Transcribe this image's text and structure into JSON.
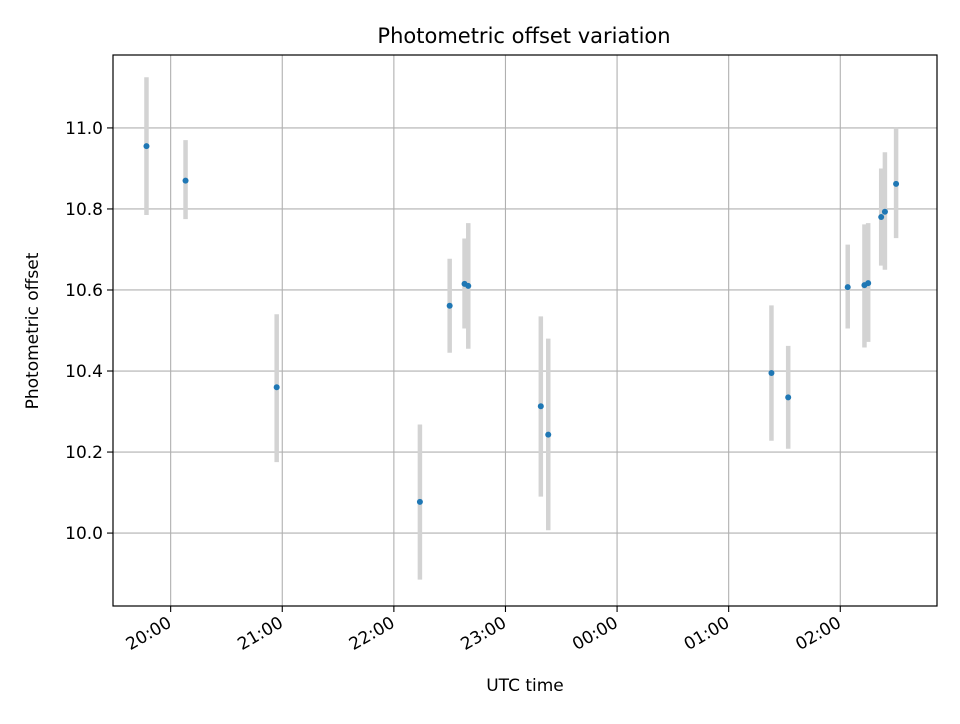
{
  "chart_data": {
    "type": "scatter",
    "title": "Photometric offset variation",
    "xlabel": "UTC time",
    "ylabel": "Photometric offset",
    "x_tick_labels": [
      "20:00",
      "21:00",
      "22:00",
      "23:00",
      "00:00",
      "01:00",
      "02:00"
    ],
    "x_tick_times": [
      "20:00",
      "21:00",
      "22:00",
      "23:00",
      "00:00",
      "01:00",
      "02:00"
    ],
    "y_tick_labels": [
      "10.0",
      "10.2",
      "10.4",
      "10.6",
      "10.8",
      "11.0"
    ],
    "y_ticks": [
      10.0,
      10.2,
      10.4,
      10.6,
      10.8,
      11.0
    ],
    "xlim": [
      "19:29",
      "02:52"
    ],
    "ylim": [
      9.82,
      11.18
    ],
    "grid": true,
    "series": [
      {
        "points": [
          {
            "x": "19:47",
            "y": 10.955,
            "yerr_low": 10.785,
            "yerr_high": 11.125
          },
          {
            "x": "20:08",
            "y": 10.87,
            "yerr_low": 10.775,
            "yerr_high": 10.97
          },
          {
            "x": "20:57",
            "y": 10.36,
            "yerr_low": 10.175,
            "yerr_high": 10.54
          },
          {
            "x": "22:14",
            "y": 10.077,
            "yerr_low": 9.885,
            "yerr_high": 10.268
          },
          {
            "x": "22:30",
            "y": 10.561,
            "yerr_low": 10.445,
            "yerr_high": 10.677
          },
          {
            "x": "22:38",
            "y": 10.615,
            "yerr_low": 10.505,
            "yerr_high": 10.727
          },
          {
            "x": "22:40",
            "y": 10.61,
            "yerr_low": 10.455,
            "yerr_high": 10.765
          },
          {
            "x": "23:19",
            "y": 10.313,
            "yerr_low": 10.09,
            "yerr_high": 10.535
          },
          {
            "x": "23:23",
            "y": 10.243,
            "yerr_low": 10.007,
            "yerr_high": 10.48
          },
          {
            "x": "01:23",
            "y": 10.395,
            "yerr_low": 10.228,
            "yerr_high": 10.562
          },
          {
            "x": "01:32",
            "y": 10.335,
            "yerr_low": 10.208,
            "yerr_high": 10.462
          },
          {
            "x": "02:04",
            "y": 10.607,
            "yerr_low": 10.505,
            "yerr_high": 10.712
          },
          {
            "x": "02:13",
            "y": 10.612,
            "yerr_low": 10.458,
            "yerr_high": 10.762
          },
          {
            "x": "02:15",
            "y": 10.617,
            "yerr_low": 10.472,
            "yerr_high": 10.765
          },
          {
            "x": "02:22",
            "y": 10.78,
            "yerr_low": 10.66,
            "yerr_high": 10.9
          },
          {
            "x": "02:24",
            "y": 10.793,
            "yerr_low": 10.65,
            "yerr_high": 10.94
          },
          {
            "x": "02:30",
            "y": 10.862,
            "yerr_low": 10.728,
            "yerr_high": 11.0
          }
        ]
      }
    ],
    "colors": {
      "marker": "#1f77b4",
      "errorbar": "#d3d3d3",
      "grid": "#b0b0b0",
      "axis": "#000000"
    }
  }
}
